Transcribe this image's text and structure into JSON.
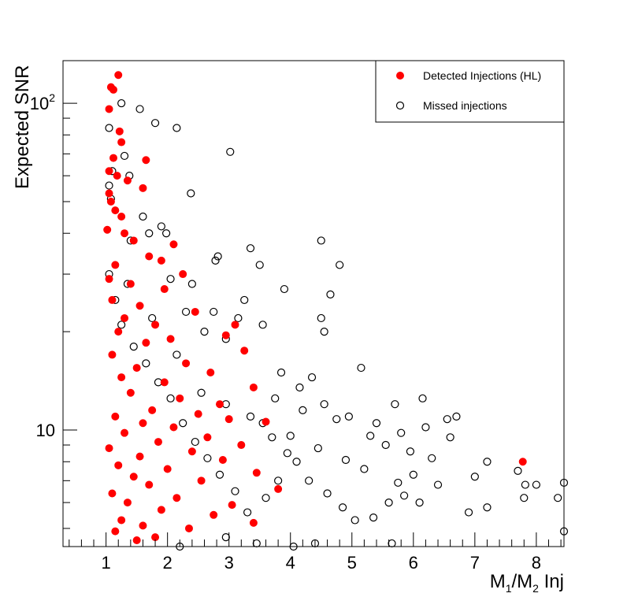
{
  "chart_data": {
    "type": "scatter",
    "title": "",
    "xlabel": "Inj",
    "xlabel_math": {
      "base1": "M",
      "sub1": "1",
      "sep": "/",
      "base2": "M",
      "sub2": "2"
    },
    "ylabel": "Expected SNR",
    "xlim": [
      0.3,
      8.45
    ],
    "ylim": [
      4.4,
      135
    ],
    "yscale": "log",
    "x_ticks": [
      "1",
      "2",
      "3",
      "4",
      "5",
      "6",
      "7",
      "8"
    ],
    "y_ticks": [
      {
        "base": "10",
        "exp": "",
        "value": 10
      },
      {
        "base": "10",
        "exp": "2",
        "value": 100
      }
    ],
    "grid": false,
    "legend_position": "top-right",
    "series": [
      {
        "name": "Detected Injections (HL)",
        "marker": "filled-circle",
        "color": "#ff0000",
        "points": [
          [
            1.2,
            122
          ],
          [
            1.08,
            112
          ],
          [
            1.12,
            110
          ],
          [
            1.05,
            96
          ],
          [
            1.22,
            82
          ],
          [
            1.25,
            76
          ],
          [
            1.12,
            68
          ],
          [
            1.65,
            67
          ],
          [
            1.05,
            62
          ],
          [
            1.18,
            60
          ],
          [
            1.35,
            58
          ],
          [
            1.6,
            55
          ],
          [
            1.05,
            53
          ],
          [
            1.08,
            50
          ],
          [
            1.15,
            47
          ],
          [
            1.25,
            45
          ],
          [
            1.02,
            41
          ],
          [
            1.3,
            40
          ],
          [
            1.45,
            38
          ],
          [
            2.1,
            37
          ],
          [
            1.7,
            34
          ],
          [
            1.9,
            33
          ],
          [
            1.15,
            32
          ],
          [
            2.25,
            30
          ],
          [
            1.05,
            29
          ],
          [
            1.4,
            28
          ],
          [
            1.95,
            27
          ],
          [
            1.1,
            25
          ],
          [
            1.55,
            24
          ],
          [
            2.45,
            23
          ],
          [
            1.3,
            22
          ],
          [
            1.8,
            21
          ],
          [
            3.1,
            21
          ],
          [
            1.2,
            20
          ],
          [
            2.05,
            19
          ],
          [
            2.95,
            19.5
          ],
          [
            1.65,
            18.5
          ],
          [
            3.25,
            17.5
          ],
          [
            1.1,
            17
          ],
          [
            2.3,
            16
          ],
          [
            1.5,
            15.5
          ],
          [
            2.7,
            15
          ],
          [
            1.25,
            14.5
          ],
          [
            1.95,
            14
          ],
          [
            3.4,
            13.5
          ],
          [
            1.4,
            13
          ],
          [
            2.2,
            12.5
          ],
          [
            2.85,
            12
          ],
          [
            1.75,
            11.5
          ],
          [
            1.15,
            11
          ],
          [
            2.5,
            11.2
          ],
          [
            3.0,
            10.8
          ],
          [
            1.6,
            10.5
          ],
          [
            2.1,
            10.2
          ],
          [
            3.6,
            10.6
          ],
          [
            1.3,
            9.8
          ],
          [
            2.65,
            9.5
          ],
          [
            1.85,
            9.2
          ],
          [
            3.2,
            9.0
          ],
          [
            1.05,
            8.8
          ],
          [
            2.4,
            8.6
          ],
          [
            1.55,
            8.3
          ],
          [
            2.9,
            8.1
          ],
          [
            7.78,
            8.0
          ],
          [
            1.2,
            7.8
          ],
          [
            2.0,
            7.6
          ],
          [
            3.45,
            7.4
          ],
          [
            1.45,
            7.2
          ],
          [
            2.55,
            7.0
          ],
          [
            1.7,
            6.8
          ],
          [
            3.8,
            6.6
          ],
          [
            1.1,
            6.4
          ],
          [
            2.15,
            6.2
          ],
          [
            1.35,
            6.0
          ],
          [
            3.05,
            5.9
          ],
          [
            1.9,
            5.7
          ],
          [
            2.75,
            5.5
          ],
          [
            1.25,
            5.3
          ],
          [
            3.4,
            5.2
          ],
          [
            1.6,
            5.1
          ],
          [
            2.35,
            5.0
          ],
          [
            1.15,
            4.9
          ],
          [
            1.8,
            4.7
          ],
          [
            1.5,
            4.6
          ]
        ]
      },
      {
        "name": "Missed injections",
        "marker": "open-circle",
        "color": "#000000",
        "points": [
          [
            1.25,
            100
          ],
          [
            1.55,
            96
          ],
          [
            2.15,
            84
          ],
          [
            1.8,
            87
          ],
          [
            1.05,
            84
          ],
          [
            3.02,
            71
          ],
          [
            1.3,
            69
          ],
          [
            1.1,
            62
          ],
          [
            1.38,
            60
          ],
          [
            2.38,
            53
          ],
          [
            1.08,
            51
          ],
          [
            1.9,
            42
          ],
          [
            1.7,
            40
          ],
          [
            4.5,
            38
          ],
          [
            3.35,
            36
          ],
          [
            1.98,
            40
          ],
          [
            2.78,
            33
          ],
          [
            3.5,
            32
          ],
          [
            4.8,
            32
          ],
          [
            2.82,
            34
          ],
          [
            2.4,
            28
          ],
          [
            3.9,
            27
          ],
          [
            4.65,
            26
          ],
          [
            3.25,
            25
          ],
          [
            2.75,
            23
          ],
          [
            3.15,
            22
          ],
          [
            4.5,
            22
          ],
          [
            4.55,
            20
          ],
          [
            3.55,
            21
          ],
          [
            2.95,
            19
          ],
          [
            2.3,
            23
          ],
          [
            1.6,
            45
          ],
          [
            1.05,
            56
          ],
          [
            1.4,
            38
          ],
          [
            2.05,
            29
          ],
          [
            2.6,
            20
          ],
          [
            5.15,
            15.5
          ],
          [
            3.85,
            15
          ],
          [
            4.35,
            14.5
          ],
          [
            6.15,
            12.5
          ],
          [
            5.7,
            12.0
          ],
          [
            6.7,
            11.0
          ],
          [
            6.55,
            10.8
          ],
          [
            7.2,
            8.0
          ],
          [
            7.0,
            7.2
          ],
          [
            7.7,
            7.5
          ],
          [
            7.82,
            6.8
          ],
          [
            8.0,
            6.8
          ],
          [
            8.45,
            6.9
          ],
          [
            7.8,
            6.2
          ],
          [
            8.35,
            6.2
          ],
          [
            7.2,
            5.8
          ],
          [
            6.9,
            5.6
          ],
          [
            8.45,
            4.9
          ],
          [
            5.65,
            4.5
          ],
          [
            4.05,
            4.4
          ],
          [
            4.4,
            4.5
          ],
          [
            3.45,
            4.5
          ],
          [
            2.95,
            4.7
          ],
          [
            2.2,
            4.4
          ],
          [
            6.0,
            7.3
          ],
          [
            5.85,
            6.3
          ],
          [
            5.6,
            6.0
          ],
          [
            5.35,
            5.4
          ],
          [
            5.05,
            5.3
          ],
          [
            4.85,
            5.8
          ],
          [
            4.6,
            6.4
          ],
          [
            4.3,
            7.0
          ],
          [
            4.1,
            8.0
          ],
          [
            3.95,
            8.5
          ],
          [
            3.7,
            9.5
          ],
          [
            3.55,
            10.5
          ],
          [
            4.2,
            11.5
          ],
          [
            4.75,
            10.8
          ],
          [
            5.3,
            9.6
          ],
          [
            5.55,
            9.0
          ],
          [
            5.95,
            8.6
          ],
          [
            6.3,
            8.2
          ],
          [
            6.4,
            6.8
          ],
          [
            6.1,
            6.0
          ],
          [
            5.75,
            6.9
          ],
          [
            5.2,
            7.6
          ],
          [
            4.9,
            8.1
          ],
          [
            4.45,
            8.8
          ],
          [
            4.0,
            9.6
          ],
          [
            3.8,
            7.0
          ],
          [
            3.6,
            6.2
          ],
          [
            3.3,
            5.6
          ],
          [
            3.1,
            6.5
          ],
          [
            2.85,
            7.3
          ],
          [
            2.65,
            8.2
          ],
          [
            2.45,
            9.2
          ],
          [
            2.25,
            10.5
          ],
          [
            2.05,
            12.5
          ],
          [
            1.85,
            14.0
          ],
          [
            1.65,
            16.0
          ],
          [
            1.45,
            18.0
          ],
          [
            1.25,
            21.0
          ],
          [
            1.15,
            25.0
          ],
          [
            1.05,
            30.0
          ],
          [
            1.35,
            28.0
          ],
          [
            1.75,
            22.0
          ],
          [
            2.15,
            17.0
          ],
          [
            2.55,
            13.0
          ],
          [
            2.95,
            12.0
          ],
          [
            3.35,
            11.0
          ],
          [
            3.75,
            12.5
          ],
          [
            4.15,
            13.5
          ],
          [
            4.55,
            12.0
          ],
          [
            4.95,
            11.0
          ],
          [
            5.4,
            10.5
          ],
          [
            5.8,
            9.8
          ],
          [
            6.2,
            10.2
          ],
          [
            6.6,
            9.5
          ]
        ]
      }
    ]
  }
}
